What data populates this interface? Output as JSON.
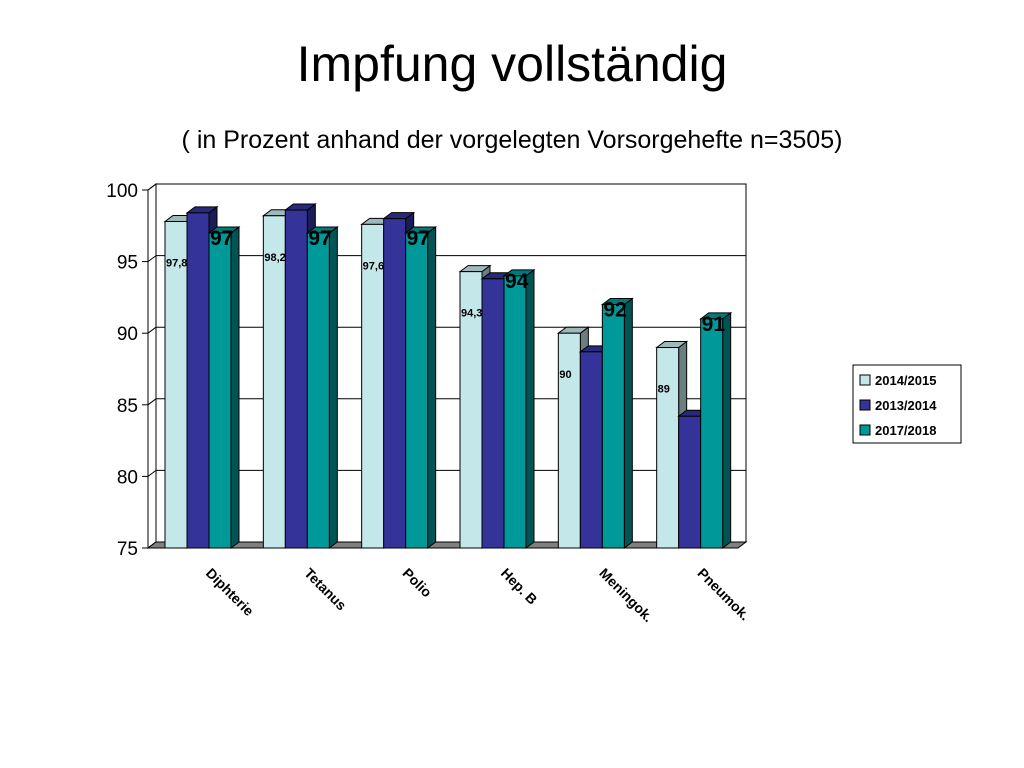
{
  "title": "Impfung vollständig",
  "subtitle": "( in Prozent anhand der vorgelegten Vorsorgehefte n=3505)",
  "chart_data": {
    "type": "bar",
    "categories": [
      "Diphterie",
      "Tetanus",
      "Polio",
      "Hep. B",
      "Meningok.",
      "Pneumok."
    ],
    "series": [
      {
        "name": "2014/2015",
        "values": [
          97.8,
          98.2,
          97.6,
          94.3,
          90,
          89
        ],
        "labels": [
          "97,8",
          "98,2",
          "97,6",
          "94,3",
          "90",
          "89"
        ],
        "color": "#c4e7e9"
      },
      {
        "name": "2013/2014",
        "values": [
          98.4,
          98.6,
          98.0,
          93.8,
          88.7,
          84.2
        ],
        "labels": [
          "",
          "",
          "",
          "",
          "",
          ""
        ],
        "color": "#333399"
      },
      {
        "name": "2017/2018",
        "values": [
          97,
          97,
          97,
          94,
          92,
          91
        ],
        "labels": [
          "97",
          "97",
          "97",
          "94",
          "92",
          "91"
        ],
        "color": "#009999"
      }
    ],
    "ylim": [
      75,
      100
    ],
    "yticks": [
      75,
      80,
      85,
      90,
      95,
      100
    ],
    "grid": true,
    "legend": "right",
    "three_d": true
  }
}
